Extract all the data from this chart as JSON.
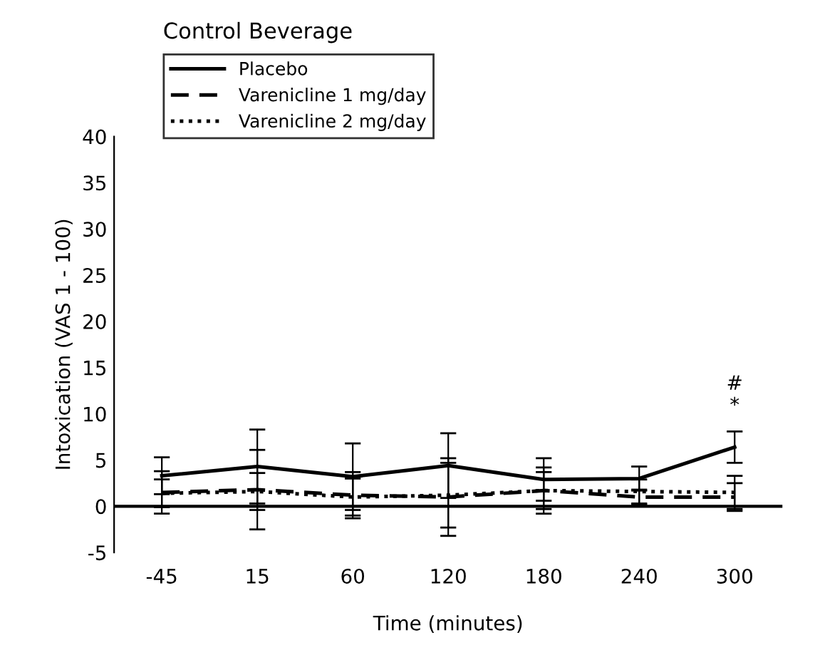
{
  "chart_data": {
    "type": "line",
    "title": "Control Beverage",
    "xlabel": "Time (minutes)",
    "ylabel": "Intoxication (VAS 1 - 100)",
    "categories": [
      "-45",
      "15",
      "60",
      "120",
      "180",
      "240",
      "300"
    ],
    "series": [
      {
        "name": "Placebo",
        "color": "#000000",
        "line_style": "solid",
        "values": [
          3.3,
          4.3,
          3.2,
          4.4,
          2.9,
          3.0,
          6.4
        ],
        "errors": [
          2.0,
          4.0,
          3.6,
          3.5,
          2.3,
          1.3,
          1.7
        ]
      },
      {
        "name": "Varenicline 1 mg/day",
        "color": "#000000",
        "line_style": "dashed",
        "values": [
          1.5,
          1.8,
          1.2,
          1.0,
          1.7,
          1.0,
          1.0
        ],
        "errors": [
          2.3,
          4.3,
          2.5,
          4.2,
          2.5,
          0.8,
          1.5
        ]
      },
      {
        "name": "Varenicline 2 mg/day",
        "color": "#000000",
        "line_style": "dotted",
        "values": [
          1.4,
          1.6,
          1.0,
          1.2,
          1.7,
          1.6,
          1.5
        ],
        "errors": [
          1.5,
          2.0,
          2.0,
          3.5,
          2.0,
          1.3,
          1.8
        ]
      }
    ],
    "annotations": [
      "*",
      "#"
    ],
    "ylim": [
      -5,
      40
    ],
    "yticks": [
      -5,
      0,
      5,
      10,
      15,
      20,
      25,
      30,
      35,
      40
    ],
    "ref_lines": [
      {
        "axis": "y",
        "value": 0,
        "color": "#000000",
        "line_style": "solid"
      }
    ],
    "legend": "top left",
    "grid": false,
    "marker": "none"
  }
}
